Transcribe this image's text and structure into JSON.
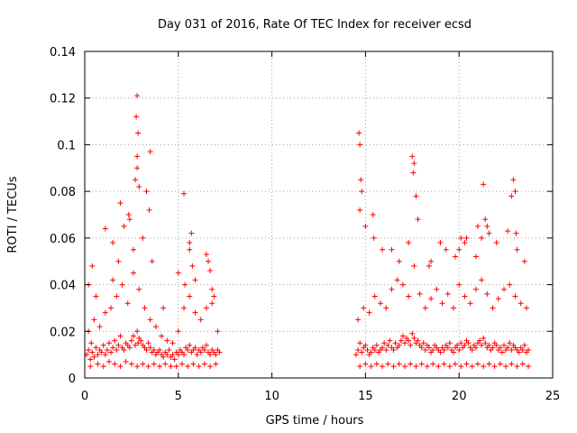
{
  "chart_data": {
    "type": "scatter",
    "title": "Day 031 of 2016, Rate Of TEC Index for receiver ecsd",
    "xlabel": "GPS time / hours",
    "ylabel": "ROTI / TECUs",
    "xlim": [
      0,
      25
    ],
    "ylim": [
      0,
      0.14
    ],
    "xticks": [
      0,
      5,
      10,
      15,
      20,
      25
    ],
    "xtick_labels": [
      "0",
      "5",
      "10",
      "15",
      "20",
      "25"
    ],
    "yticks": [
      0,
      0.02,
      0.04,
      0.06,
      0.08,
      0.1,
      0.12,
      0.14
    ],
    "ytick_labels": [
      "0",
      "0.02",
      "0.04",
      "0.06",
      "0.08",
      "0.1",
      "0.12",
      "0.14"
    ],
    "grid": true,
    "marker": "+",
    "color": "#ff0000",
    "series": [
      {
        "x": [
          0.1,
          0.2,
          0.3,
          0.35,
          0.4,
          0.5,
          0.6,
          0.7,
          0.8,
          0.9,
          1.0,
          1.1,
          1.2,
          1.3,
          1.4,
          1.5,
          1.6,
          1.7,
          1.8,
          1.9,
          2.0,
          2.1,
          2.2,
          2.3,
          2.4,
          2.5,
          2.6,
          2.7,
          2.8,
          2.85,
          2.9,
          3.0,
          3.1,
          3.2,
          3.3,
          3.4,
          3.5,
          3.6,
          3.7,
          3.8,
          3.9,
          4.0,
          4.1,
          4.2,
          4.3,
          4.4,
          4.5,
          4.6,
          4.7,
          4.8,
          4.9,
          5.0,
          5.1,
          5.2,
          5.3,
          5.4,
          5.5,
          5.6,
          5.7,
          5.8,
          5.9,
          6.0,
          6.1,
          6.2,
          6.3,
          6.4,
          6.5,
          6.6,
          6.7,
          6.8,
          6.9,
          7.0,
          7.1,
          7.2,
          0.2,
          0.5,
          0.8,
          1.1,
          1.4,
          1.7,
          2.0,
          2.3,
          2.6,
          2.9,
          3.2,
          3.5,
          3.8,
          4.1,
          4.4,
          4.7,
          5.0,
          5.3,
          5.6,
          5.9,
          6.2,
          6.5,
          6.8,
          7.1,
          0.3,
          0.7,
          1.0,
          1.3,
          1.6,
          1.9,
          2.2,
          2.5,
          2.8,
          3.1,
          3.4,
          3.7,
          4.0,
          4.3,
          4.6,
          4.9,
          5.2,
          5.5,
          5.8,
          6.1,
          6.4,
          6.7,
          7.0,
          0.4,
          0.6,
          1.5,
          1.8,
          2.1,
          2.7,
          2.75,
          2.8,
          2.8,
          2.85,
          3.3,
          3.5,
          3.45,
          5.3,
          5.35,
          5.6,
          5.7,
          5.75,
          6.5,
          6.7,
          6.8,
          0.2,
          1.1,
          1.5,
          1.9,
          2.35,
          2.4,
          2.6,
          2.8,
          2.9,
          3.1,
          3.6,
          4.2,
          5.0,
          5.6,
          5.9,
          6.6,
          6.9,
          14.5,
          14.6,
          14.7,
          14.8,
          14.9,
          15.0,
          15.1,
          15.2,
          15.3,
          15.4,
          15.5,
          15.6,
          15.7,
          15.8,
          15.9,
          16.0,
          16.1,
          16.2,
          16.3,
          16.4,
          16.5,
          16.6,
          16.7,
          16.8,
          16.9,
          17.0,
          17.1,
          17.2,
          17.3,
          17.4,
          17.5,
          17.6,
          17.7,
          17.8,
          17.9,
          18.0,
          18.1,
          18.2,
          18.3,
          18.4,
          18.5,
          18.6,
          18.7,
          18.8,
          18.9,
          19.0,
          19.1,
          19.2,
          19.3,
          19.4,
          19.5,
          19.6,
          19.7,
          19.8,
          19.9,
          20.0,
          20.1,
          20.2,
          20.3,
          20.4,
          20.5,
          20.6,
          20.7,
          20.8,
          20.9,
          21.0,
          21.1,
          21.2,
          21.3,
          21.4,
          21.5,
          21.6,
          21.7,
          21.8,
          21.9,
          22.0,
          22.1,
          22.2,
          22.3,
          22.4,
          22.5,
          22.6,
          22.7,
          22.8,
          22.9,
          23.0,
          23.1,
          23.2,
          23.3,
          23.4,
          23.5,
          23.6,
          23.7,
          14.6,
          14.9,
          15.2,
          15.5,
          15.8,
          16.1,
          16.4,
          16.7,
          17.0,
          17.3,
          17.6,
          17.9,
          18.2,
          18.5,
          18.8,
          19.1,
          19.4,
          19.7,
          20.0,
          20.3,
          20.6,
          20.9,
          21.2,
          21.5,
          21.8,
          22.1,
          22.4,
          22.7,
          23.0,
          23.3,
          23.6,
          14.7,
          15.0,
          15.3,
          15.6,
          15.9,
          16.2,
          16.5,
          16.8,
          17.1,
          17.4,
          17.7,
          18.0,
          18.3,
          18.6,
          18.9,
          19.2,
          19.5,
          19.8,
          20.1,
          20.4,
          20.7,
          21.0,
          21.3,
          21.6,
          21.9,
          22.2,
          22.5,
          22.8,
          23.1,
          23.4,
          23.7,
          14.65,
          14.7,
          14.75,
          14.8,
          15.4,
          15.45,
          16.4,
          17.5,
          17.6,
          17.7,
          17.8,
          17.55,
          20.1,
          20.3,
          20.9,
          21.3,
          21.4,
          21.5,
          22.9,
          23.0,
          22.8,
          23.05,
          21.2,
          20.0,
          19.0,
          18.5,
          14.7,
          15.0,
          15.9,
          16.8,
          17.3,
          18.4,
          19.3,
          19.8,
          20.4,
          21.0,
          21.6,
          22.0,
          22.6,
          23.1,
          23.5
        ],
        "y": [
          0.01,
          0.012,
          0.008,
          0.015,
          0.011,
          0.009,
          0.013,
          0.01,
          0.012,
          0.011,
          0.014,
          0.01,
          0.012,
          0.015,
          0.011,
          0.013,
          0.016,
          0.012,
          0.014,
          0.018,
          0.013,
          0.012,
          0.015,
          0.014,
          0.013,
          0.016,
          0.018,
          0.014,
          0.02,
          0.015,
          0.017,
          0.016,
          0.014,
          0.013,
          0.012,
          0.015,
          0.013,
          0.011,
          0.012,
          0.01,
          0.011,
          0.012,
          0.01,
          0.009,
          0.011,
          0.01,
          0.012,
          0.009,
          0.01,
          0.008,
          0.011,
          0.01,
          0.012,
          0.011,
          0.01,
          0.013,
          0.012,
          0.014,
          0.011,
          0.012,
          0.013,
          0.01,
          0.012,
          0.011,
          0.013,
          0.012,
          0.014,
          0.011,
          0.01,
          0.012,
          0.011,
          0.01,
          0.012,
          0.011,
          0.02,
          0.025,
          0.022,
          0.028,
          0.03,
          0.035,
          0.04,
          0.032,
          0.045,
          0.038,
          0.03,
          0.025,
          0.022,
          0.018,
          0.016,
          0.015,
          0.02,
          0.03,
          0.035,
          0.028,
          0.025,
          0.03,
          0.032,
          0.02,
          0.005,
          0.006,
          0.005,
          0.007,
          0.006,
          0.005,
          0.007,
          0.006,
          0.005,
          0.006,
          0.005,
          0.006,
          0.005,
          0.006,
          0.005,
          0.005,
          0.006,
          0.005,
          0.006,
          0.005,
          0.006,
          0.005,
          0.006,
          0.048,
          0.035,
          0.042,
          0.05,
          0.065,
          0.085,
          0.112,
          0.121,
          0.095,
          0.105,
          0.08,
          0.097,
          0.072,
          0.079,
          0.04,
          0.055,
          0.062,
          0.048,
          0.053,
          0.046,
          0.038,
          0.04,
          0.064,
          0.058,
          0.075,
          0.07,
          0.068,
          0.055,
          0.09,
          0.082,
          0.06,
          0.05,
          0.03,
          0.045,
          0.058,
          0.042,
          0.05,
          0.035,
          0.01,
          0.012,
          0.015,
          0.011,
          0.013,
          0.014,
          0.012,
          0.01,
          0.011,
          0.013,
          0.012,
          0.014,
          0.011,
          0.012,
          0.013,
          0.015,
          0.012,
          0.014,
          0.016,
          0.013,
          0.012,
          0.015,
          0.013,
          0.014,
          0.016,
          0.018,
          0.015,
          0.017,
          0.016,
          0.014,
          0.019,
          0.017,
          0.015,
          0.016,
          0.014,
          0.013,
          0.015,
          0.012,
          0.014,
          0.013,
          0.011,
          0.012,
          0.014,
          0.013,
          0.012,
          0.011,
          0.013,
          0.012,
          0.014,
          0.013,
          0.015,
          0.012,
          0.011,
          0.013,
          0.014,
          0.012,
          0.015,
          0.013,
          0.014,
          0.016,
          0.015,
          0.013,
          0.012,
          0.014,
          0.013,
          0.015,
          0.016,
          0.014,
          0.017,
          0.015,
          0.013,
          0.014,
          0.012,
          0.013,
          0.015,
          0.014,
          0.012,
          0.013,
          0.011,
          0.014,
          0.012,
          0.013,
          0.015,
          0.012,
          0.014,
          0.013,
          0.012,
          0.011,
          0.013,
          0.012,
          0.014,
          0.011,
          0.012,
          0.025,
          0.03,
          0.028,
          0.035,
          0.032,
          0.03,
          0.038,
          0.042,
          0.04,
          0.035,
          0.048,
          0.036,
          0.03,
          0.034,
          0.038,
          0.032,
          0.036,
          0.03,
          0.04,
          0.035,
          0.032,
          0.038,
          0.042,
          0.036,
          0.03,
          0.034,
          0.038,
          0.04,
          0.035,
          0.032,
          0.03,
          0.005,
          0.006,
          0.005,
          0.006,
          0.005,
          0.006,
          0.005,
          0.006,
          0.005,
          0.006,
          0.005,
          0.006,
          0.005,
          0.006,
          0.005,
          0.006,
          0.005,
          0.006,
          0.005,
          0.006,
          0.005,
          0.006,
          0.005,
          0.006,
          0.005,
          0.006,
          0.005,
          0.006,
          0.005,
          0.006,
          0.005,
          0.105,
          0.1,
          0.085,
          0.08,
          0.07,
          0.06,
          0.055,
          0.095,
          0.092,
          0.078,
          0.068,
          0.088,
          0.06,
          0.058,
          0.052,
          0.083,
          0.068,
          0.065,
          0.085,
          0.08,
          0.078,
          0.062,
          0.06,
          0.055,
          0.058,
          0.05,
          0.072,
          0.065,
          0.055,
          0.05,
          0.058,
          0.048,
          0.055,
          0.052,
          0.06,
          0.065,
          0.062,
          0.058,
          0.063,
          0.055,
          0.05
        ]
      }
    ]
  }
}
